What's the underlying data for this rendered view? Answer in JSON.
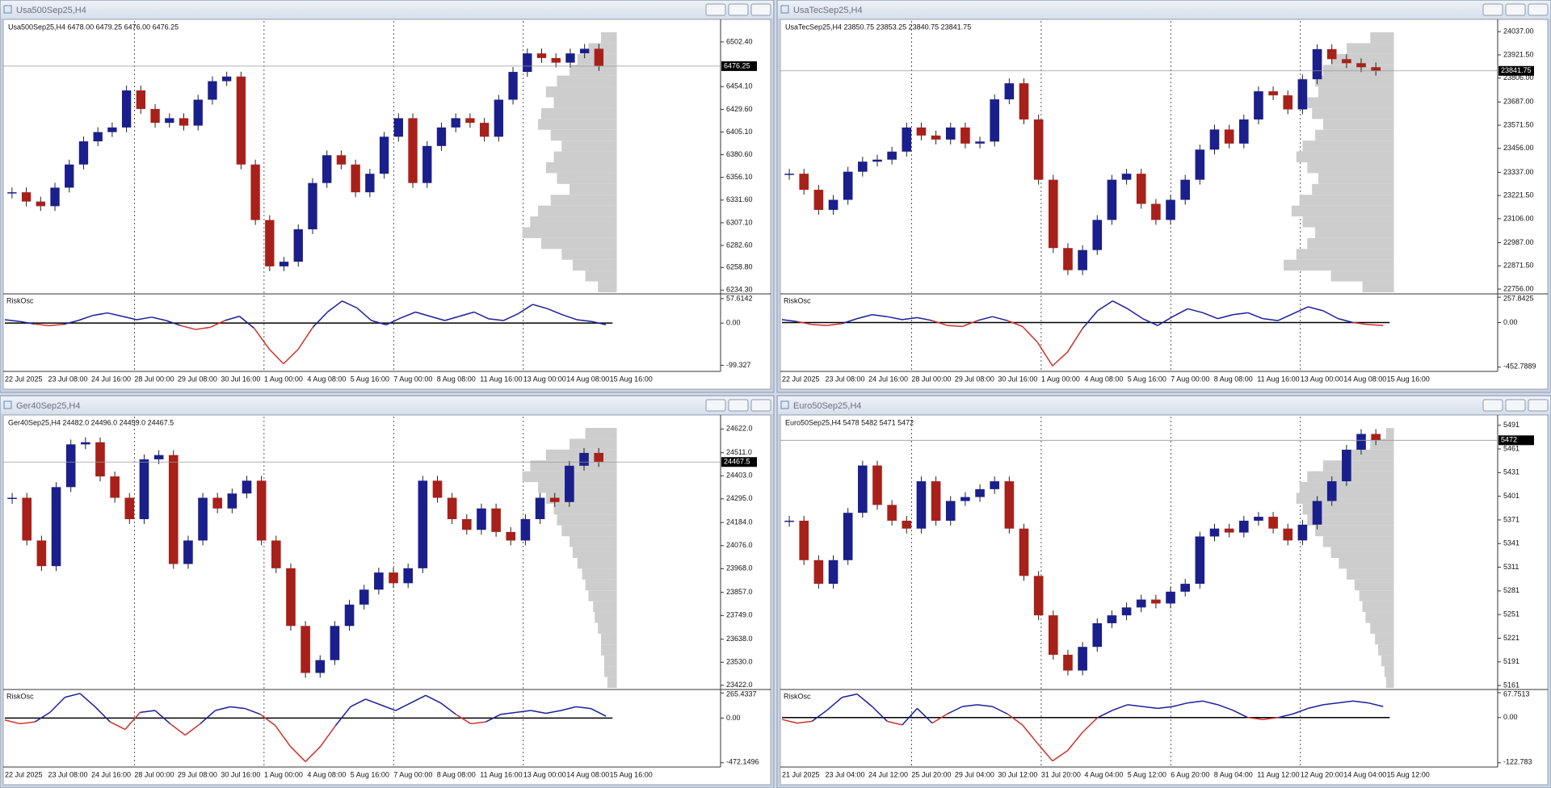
{
  "windows": [
    {
      "title": "Usa500Sep25,H4",
      "header": "Usa500Sep25,H4  6478.00 6479.25 6476.00 6476.25",
      "ylim": [
        6232,
        6525
      ],
      "yticks": [
        {
          "value": 6502.4,
          "label": "6502.40"
        },
        {
          "value": 6454.1,
          "label": "6454.10"
        },
        {
          "value": 6429.6,
          "label": "6429.60"
        },
        {
          "value": 6405.1,
          "label": "6405.10"
        },
        {
          "value": 6380.6,
          "label": "6380.60"
        },
        {
          "value": 6356.1,
          "label": "6356.10"
        },
        {
          "value": 6331.6,
          "label": "6331.60"
        },
        {
          "value": 6307.1,
          "label": "6307.10"
        },
        {
          "value": 6282.6,
          "label": "6282.60"
        },
        {
          "value": 6258.8,
          "label": "6258.80"
        },
        {
          "value": 6234.3,
          "label": "6234.30"
        }
      ],
      "current": 6476.25,
      "closes": [
        6340,
        6330,
        6325,
        6345,
        6370,
        6395,
        6405,
        6410,
        6450,
        6430,
        6415,
        6420,
        6412,
        6440,
        6460,
        6465,
        6370,
        6310,
        6260,
        6265,
        6300,
        6350,
        6380,
        6370,
        6340,
        6360,
        6400,
        6420,
        6350,
        6390,
        6410,
        6420,
        6415,
        6400,
        6440,
        6470,
        6490,
        6485,
        6480,
        6490,
        6495,
        6476.25
      ],
      "profile": [
        10,
        18,
        25,
        30,
        38,
        45,
        40,
        48,
        50,
        42,
        35,
        40,
        45,
        38,
        30,
        42,
        50,
        55,
        60,
        48,
        35,
        28,
        20,
        12
      ],
      "xlabels": [
        "22 Jul 2025",
        "23 Jul 08:00",
        "24 Jul 16:00",
        "28 Jul 00:00",
        "29 Jul 08:00",
        "30 Jul 16:00",
        "1 Aug 00:00",
        "4 Aug 08:00",
        "5 Aug 16:00",
        "7 Aug 00:00",
        "8 Aug 08:00",
        "11 Aug 16:00",
        "13 Aug 00:00",
        "14 Aug 08:00",
        "15 Aug 16:00"
      ],
      "osc": {
        "label": "RiskOsc",
        "ylim": [
          -110,
          65
        ],
        "yticks": [
          57.6142,
          {
            "value": 0,
            "label": "0.00"
          },
          -99.327
        ],
        "values": [
          8,
          4,
          -2,
          -6,
          -3,
          6,
          18,
          24,
          16,
          8,
          14,
          6,
          -6,
          -15,
          -10,
          6,
          16,
          -12,
          -60,
          -96,
          -62,
          -10,
          26,
          52,
          36,
          6,
          -4,
          12,
          26,
          16,
          6,
          16,
          26,
          10,
          6,
          22,
          44,
          34,
          20,
          8,
          4,
          -4
        ]
      }
    },
    {
      "title": "UsaTecSep25,H4",
      "header": "UsaTecSep25,H4  23850.75 23853.25 23840.75 23841.75",
      "ylim": [
        22740,
        24090
      ],
      "yticks": [
        {
          "value": 24037,
          "label": "24037.00"
        },
        {
          "value": 23921.5,
          "label": "23921.50"
        },
        {
          "value": 23806,
          "label": "23806.00"
        },
        {
          "value": 23687,
          "label": "23687.00"
        },
        {
          "value": 23571.5,
          "label": "23571.50"
        },
        {
          "value": 23456,
          "label": "23456.00"
        },
        {
          "value": 23337,
          "label": "23337.00"
        },
        {
          "value": 23221.5,
          "label": "23221.50"
        },
        {
          "value": 23106,
          "label": "23106.00"
        },
        {
          "value": 22987,
          "label": "22987.00"
        },
        {
          "value": 22871.5,
          "label": "22871.50"
        },
        {
          "value": 22756,
          "label": "22756.00"
        }
      ],
      "current": 23841.75,
      "closes": [
        23330,
        23250,
        23150,
        23200,
        23340,
        23390,
        23400,
        23440,
        23560,
        23520,
        23500,
        23560,
        23480,
        23490,
        23700,
        23780,
        23600,
        23300,
        22960,
        22850,
        22950,
        23100,
        23300,
        23330,
        23180,
        23100,
        23200,
        23300,
        23450,
        23550,
        23480,
        23600,
        23740,
        23720,
        23650,
        23800,
        23950,
        23900,
        23880,
        23860,
        23841.75
      ],
      "profile": [
        15,
        30,
        40,
        45,
        50,
        48,
        55,
        52,
        45,
        50,
        58,
        62,
        55,
        48,
        52,
        60,
        65,
        58,
        50,
        55,
        62,
        70,
        40,
        20
      ],
      "xlabels": [
        "22 Jul 2025",
        "23 Jul 08:00",
        "24 Jul 16:00",
        "28 Jul 00:00",
        "29 Jul 08:00",
        "30 Jul 16:00",
        "1 Aug 00:00",
        "4 Aug 08:00",
        "5 Aug 16:00",
        "7 Aug 00:00",
        "8 Aug 08:00",
        "11 Aug 16:00",
        "13 Aug 00:00",
        "14 Aug 08:00",
        "15 Aug 16:00"
      ],
      "osc": {
        "label": "RiskOsc",
        "ylim": [
          -480,
          275
        ],
        "yticks": [
          257.8425,
          {
            "value": 0,
            "label": "0.00"
          },
          -452.7889
        ],
        "values": [
          30,
          10,
          -20,
          -30,
          -10,
          40,
          80,
          60,
          30,
          50,
          20,
          -30,
          -40,
          20,
          60,
          20,
          -40,
          -200,
          -440,
          -300,
          -60,
          120,
          220,
          140,
          40,
          -30,
          60,
          140,
          100,
          40,
          80,
          100,
          40,
          20,
          90,
          160,
          120,
          40,
          0,
          -20,
          -30
        ]
      }
    },
    {
      "title": "Ger40Sep25,H4",
      "header": "Ger40Sep25,H4  24482.0 24496.0 24459.0 24467.5",
      "ylim": [
        23410,
        24680
      ],
      "yticks": [
        {
          "value": 24622,
          "label": "24622.0"
        },
        {
          "value": 24511,
          "label": "24511.0"
        },
        {
          "value": 24403,
          "label": "24403.0"
        },
        {
          "value": 24295,
          "label": "24295.0"
        },
        {
          "value": 24184,
          "label": "24184.0"
        },
        {
          "value": 24076,
          "label": "24076.0"
        },
        {
          "value": 23968,
          "label": "23968.0"
        },
        {
          "value": 23857,
          "label": "23857.0"
        },
        {
          "value": 23749,
          "label": "23749.0"
        },
        {
          "value": 23638,
          "label": "23638.0"
        },
        {
          "value": 23530,
          "label": "23530.0"
        },
        {
          "value": 23422,
          "label": "23422.0"
        }
      ],
      "current": 24467.5,
      "closes": [
        24300,
        24100,
        23980,
        24350,
        24550,
        24560,
        24400,
        24300,
        24200,
        24480,
        24500,
        23990,
        24100,
        24300,
        24250,
        24320,
        24380,
        24100,
        23970,
        23700,
        23480,
        23540,
        23700,
        23800,
        23870,
        23950,
        23900,
        23970,
        24380,
        24300,
        24200,
        24150,
        24250,
        24140,
        24100,
        24200,
        24300,
        24280,
        24450,
        24510,
        24467.5
      ],
      "profile": [
        20,
        30,
        45,
        55,
        60,
        50,
        45,
        40,
        38,
        35,
        30,
        28,
        25,
        22,
        20,
        18,
        15,
        14,
        12,
        10,
        10,
        8,
        8,
        6
      ],
      "xlabels": [
        "22 Jul 2025",
        "23 Jul 08:00",
        "24 Jul 16:00",
        "28 Jul 00:00",
        "29 Jul 08:00",
        "30 Jul 16:00",
        "1 Aug 00:00",
        "4 Aug 08:00",
        "5 Aug 16:00",
        "7 Aug 00:00",
        "8 Aug 08:00",
        "11 Aug 16:00",
        "13 Aug 00:00",
        "14 Aug 08:00",
        "15 Aug 16:00"
      ],
      "osc": {
        "label": "RiskOsc",
        "ylim": [
          -500,
          285
        ],
        "yticks": [
          265.4337,
          {
            "value": 0,
            "label": "0.00"
          },
          -472.1496
        ],
        "values": [
          -20,
          -60,
          -40,
          60,
          220,
          260,
          120,
          -40,
          -120,
          60,
          80,
          -60,
          -180,
          -60,
          80,
          120,
          100,
          40,
          -80,
          -300,
          -460,
          -300,
          -80,
          120,
          200,
          140,
          80,
          160,
          240,
          160,
          40,
          -60,
          -40,
          40,
          60,
          80,
          50,
          80,
          120,
          100,
          20
        ]
      }
    },
    {
      "title": "Euro50Sep25,H4",
      "header": "Euro50Sep25,H4  5478 5482 5471 5472",
      "ylim": [
        5158,
        5502
      ],
      "yticks": [
        5491,
        5461,
        5431,
        5401,
        5371,
        5341,
        5311,
        5281,
        5251,
        5221,
        5191,
        5161
      ],
      "current": 5472,
      "closes": [
        5370,
        5320,
        5290,
        5320,
        5380,
        5440,
        5390,
        5370,
        5360,
        5420,
        5370,
        5395,
        5400,
        5410,
        5420,
        5360,
        5300,
        5250,
        5200,
        5180,
        5210,
        5240,
        5250,
        5260,
        5270,
        5265,
        5280,
        5290,
        5350,
        5360,
        5355,
        5370,
        5375,
        5360,
        5345,
        5365,
        5395,
        5420,
        5460,
        5480,
        5472
      ],
      "profile": [
        5,
        15,
        30,
        45,
        55,
        60,
        62,
        58,
        55,
        50,
        45,
        40,
        35,
        30,
        25,
        22,
        20,
        18,
        15,
        12,
        10,
        8,
        6,
        5
      ],
      "xlabels": [
        "21 Jul 2025",
        "23 Jul 04:00",
        "24 Jul 12:00",
        "25 Jul 20:00",
        "29 Jul 04:00",
        "30 Jul 12:00",
        "31 Jul 20:00",
        "4 Aug 04:00",
        "5 Aug 12:00",
        "6 Aug 20:00",
        "8 Aug 04:00",
        "11 Aug 12:00",
        "12 Aug 20:00",
        "14 Aug 04:00",
        "15 Aug 12:00"
      ],
      "osc": {
        "label": "RiskOsc",
        "ylim": [
          -130,
          72
        ],
        "yticks": [
          67.7513,
          {
            "value": 0,
            "label": "0.00"
          },
          -122.783
        ],
        "values": [
          -5,
          -15,
          -10,
          20,
          55,
          64,
          30,
          -10,
          -20,
          25,
          -15,
          10,
          30,
          35,
          30,
          10,
          -20,
          -70,
          -118,
          -90,
          -40,
          0,
          20,
          35,
          30,
          25,
          30,
          40,
          45,
          35,
          20,
          0,
          -5,
          0,
          10,
          25,
          35,
          40,
          45,
          40,
          30
        ]
      }
    }
  ]
}
